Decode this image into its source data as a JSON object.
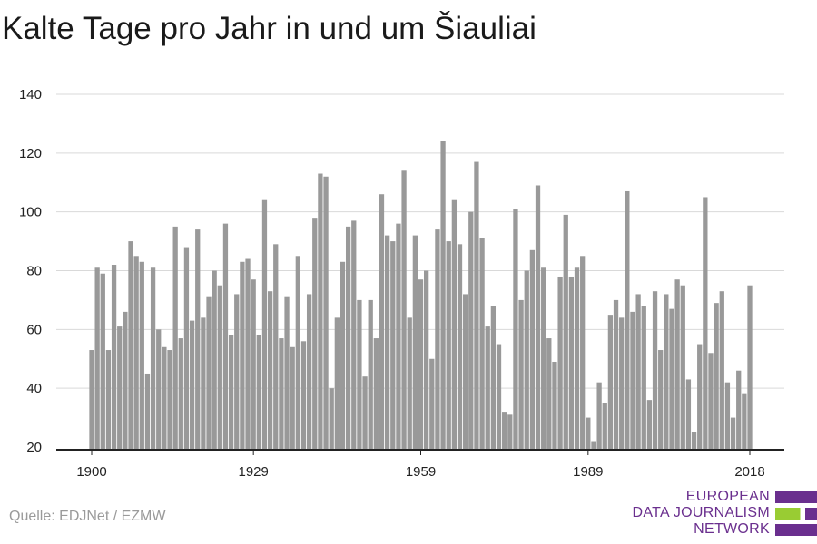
{
  "title": "Kalte Tage pro Jahr in und um Šiauliai",
  "source": "Quelle: EDJNet / EZMW",
  "logo": {
    "lines": [
      "EUROPEAN",
      "DATA JOURNALISM",
      "NETWORK"
    ],
    "colors": {
      "purple": "#6a2f8e",
      "green": "#99cc33"
    }
  },
  "colors": {
    "bar": "#999999",
    "grid": "#d9d9d9",
    "axis": "#222222"
  },
  "chart_data": {
    "type": "bar",
    "title": "Kalte Tage pro Jahr in und um Šiauliai",
    "xlabel": "",
    "ylabel": "",
    "ylim": [
      20,
      140
    ],
    "yticks": [
      20,
      40,
      60,
      80,
      100,
      120,
      140
    ],
    "xticks": [
      1900,
      1929,
      1959,
      1989,
      2018
    ],
    "grid": true,
    "x_start": 1900,
    "x_end": 2018,
    "values": [
      53,
      81,
      79,
      53,
      82,
      61,
      66,
      90,
      85,
      83,
      45,
      81,
      60,
      54,
      53,
      95,
      57,
      88,
      63,
      94,
      64,
      71,
      80,
      75,
      96,
      58,
      72,
      83,
      84,
      77,
      58,
      104,
      73,
      89,
      57,
      71,
      54,
      85,
      56,
      72,
      98,
      113,
      112,
      40,
      64,
      83,
      95,
      97,
      70,
      44,
      70,
      57,
      106,
      92,
      90,
      96,
      114,
      64,
      92,
      77,
      80,
      50,
      94,
      124,
      90,
      104,
      89,
      72,
      100,
      117,
      91,
      61,
      68,
      55,
      32,
      31,
      101,
      70,
      80,
      87,
      109,
      81,
      57,
      49,
      78,
      99,
      78,
      81,
      85,
      30,
      22,
      42,
      35,
      65,
      70,
      64,
      107,
      66,
      72,
      68,
      36,
      73,
      53,
      72,
      67,
      77,
      75,
      43,
      25,
      55,
      105,
      52,
      69,
      73,
      42,
      30,
      46,
      38,
      75
    ]
  }
}
